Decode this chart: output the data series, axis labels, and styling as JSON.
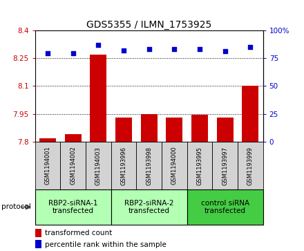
{
  "title": "GDS5355 / ILMN_1753925",
  "samples": [
    "GSM1194001",
    "GSM1194002",
    "GSM1194003",
    "GSM1193996",
    "GSM1193998",
    "GSM1194000",
    "GSM1193995",
    "GSM1193997",
    "GSM1193999"
  ],
  "transformed_counts": [
    7.82,
    7.84,
    8.27,
    7.93,
    7.95,
    7.93,
    7.945,
    7.93,
    8.1
  ],
  "percentile_ranks": [
    79,
    79,
    87,
    82,
    83,
    83,
    83,
    81,
    85
  ],
  "ylim_left": [
    7.8,
    8.4
  ],
  "ylim_right": [
    0,
    100
  ],
  "yticks_left": [
    7.8,
    7.95,
    8.1,
    8.25,
    8.4
  ],
  "yticks_right": [
    0,
    25,
    50,
    75,
    100
  ],
  "ytick_labels_left": [
    "7.8",
    "7.95",
    "8.1",
    "8.25",
    "8.4"
  ],
  "ytick_labels_right": [
    "0",
    "25",
    "50",
    "75",
    "100%"
  ],
  "bar_color": "#cc0000",
  "scatter_color": "#0000cc",
  "groups": [
    {
      "label": "RBP2-siRNA-1\ntransfected",
      "indices": [
        0,
        1,
        2
      ],
      "color": "#b3ffb3"
    },
    {
      "label": "RBP2-siRNA-2\ntransfected",
      "indices": [
        3,
        4,
        5
      ],
      "color": "#b3ffb3"
    },
    {
      "label": "control siRNA\ntransfected",
      "indices": [
        6,
        7,
        8
      ],
      "color": "#44cc44"
    }
  ],
  "protocol_label": "protocol",
  "legend_bar_label": "transformed count",
  "legend_scatter_label": "percentile rank within the sample",
  "background_color": "#ffffff",
  "sample_box_color": "#d3d3d3",
  "title_fontsize": 10,
  "tick_fontsize": 7.5,
  "sample_fontsize": 6.0,
  "group_fontsize": 7.5,
  "legend_fontsize": 7.5
}
